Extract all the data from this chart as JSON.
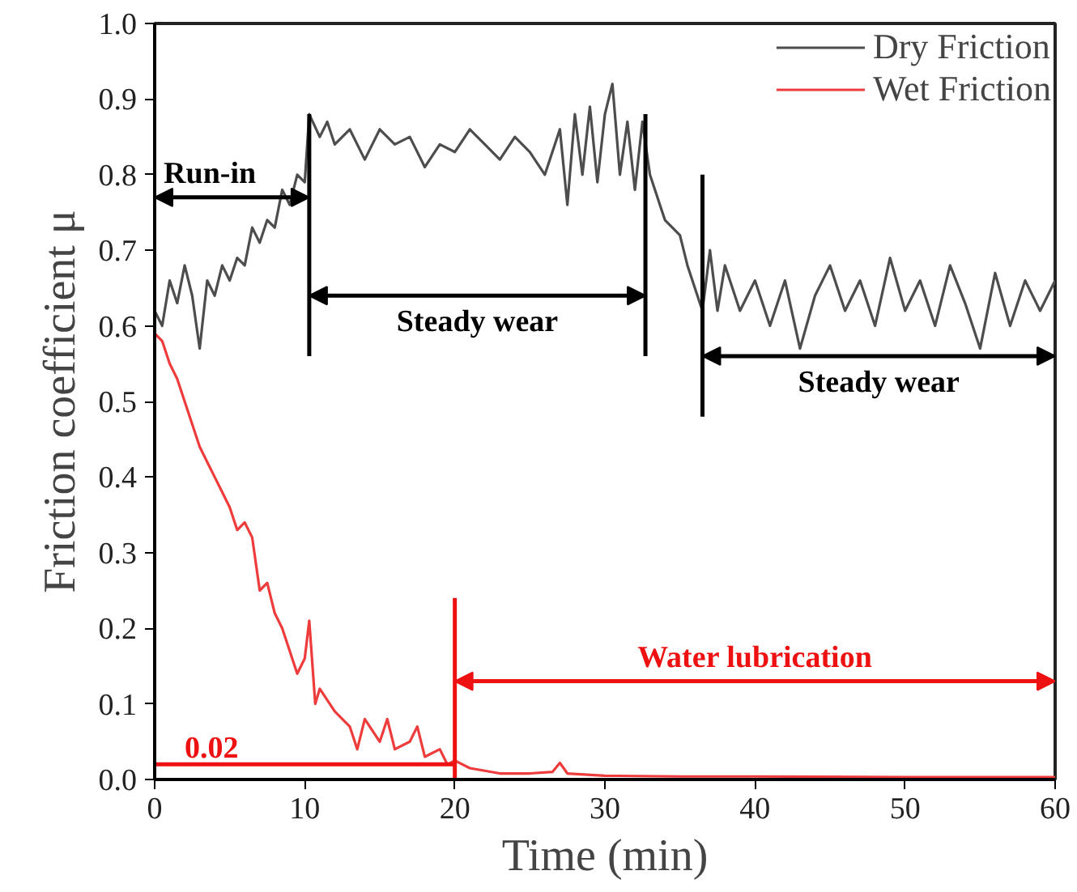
{
  "chart_data": {
    "type": "line",
    "xlabel": "Time (min)",
    "ylabel": "Friction coefficient μ",
    "xlim": [
      0,
      60
    ],
    "ylim": [
      0,
      1.0
    ],
    "xticks": [
      0,
      10,
      20,
      30,
      40,
      50,
      60
    ],
    "yticks": [
      {
        "value": 0,
        "label": "0.0"
      },
      {
        "value": 0.1,
        "label": "0.1"
      },
      {
        "value": 0.2,
        "label": "0.2"
      },
      {
        "value": 0.3,
        "label": "0.3"
      },
      {
        "value": 0.4,
        "label": "0.4"
      },
      {
        "value": 0.5,
        "label": "0.5"
      },
      {
        "value": 0.6,
        "label": "0.6"
      },
      {
        "value": 0.7,
        "label": "0.7"
      },
      {
        "value": 0.8,
        "label": "0.8"
      },
      {
        "value": 0.9,
        "label": "0.9"
      },
      {
        "value": 1.0,
        "label": "1.0"
      }
    ],
    "grid": false,
    "legend": "top right",
    "line_style": "solid",
    "marker": "none",
    "series": [
      {
        "name": "Dry Friction",
        "color": "#4d4d4d",
        "x": [
          0,
          0.5,
          1,
          1.5,
          2,
          2.5,
          3,
          3.5,
          4,
          4.5,
          5,
          5.5,
          6,
          6.5,
          7,
          7.5,
          8,
          8.5,
          9,
          9.5,
          10,
          10.3,
          11,
          11.5,
          12,
          13,
          14,
          15,
          16,
          17,
          18,
          19,
          20,
          21,
          22,
          23,
          24,
          25,
          26,
          27,
          27.5,
          28,
          28.5,
          29,
          29.5,
          30,
          30.5,
          31,
          31.5,
          32,
          32.5,
          33,
          33.5,
          34,
          35,
          35.5,
          36,
          36.5,
          37,
          37.5,
          38,
          39,
          40,
          41,
          42,
          43,
          44,
          45,
          46,
          47,
          48,
          49,
          50,
          51,
          52,
          53,
          54,
          55,
          56,
          57,
          58,
          59,
          60
        ],
        "values": [
          0.62,
          0.6,
          0.66,
          0.63,
          0.68,
          0.64,
          0.57,
          0.66,
          0.64,
          0.68,
          0.66,
          0.69,
          0.68,
          0.73,
          0.71,
          0.74,
          0.73,
          0.78,
          0.76,
          0.8,
          0.79,
          0.88,
          0.85,
          0.87,
          0.84,
          0.86,
          0.82,
          0.86,
          0.84,
          0.85,
          0.81,
          0.84,
          0.83,
          0.86,
          0.84,
          0.82,
          0.85,
          0.83,
          0.8,
          0.86,
          0.76,
          0.88,
          0.8,
          0.89,
          0.79,
          0.88,
          0.92,
          0.8,
          0.87,
          0.78,
          0.87,
          0.8,
          0.77,
          0.74,
          0.72,
          0.68,
          0.65,
          0.62,
          0.7,
          0.62,
          0.68,
          0.62,
          0.66,
          0.6,
          0.66,
          0.57,
          0.64,
          0.68,
          0.62,
          0.66,
          0.6,
          0.69,
          0.62,
          0.66,
          0.6,
          0.68,
          0.63,
          0.57,
          0.67,
          0.6,
          0.66,
          0.62,
          0.66
        ]
      },
      {
        "name": "Wet Friction",
        "color": "#ee3b3b",
        "x": [
          0,
          0.5,
          1,
          1.5,
          2,
          2.5,
          3,
          3.5,
          4,
          4.5,
          5,
          5.5,
          6,
          6.5,
          7,
          7.5,
          8,
          8.5,
          9,
          9.5,
          10,
          10.3,
          10.7,
          11,
          12,
          13,
          13.5,
          14,
          15,
          15.5,
          16,
          17,
          17.5,
          18,
          19,
          19.5,
          20,
          21,
          23,
          25,
          26.5,
          27,
          27.5,
          30,
          35,
          40,
          50,
          60
        ],
        "values": [
          0.59,
          0.58,
          0.55,
          0.53,
          0.5,
          0.47,
          0.44,
          0.42,
          0.4,
          0.38,
          0.36,
          0.33,
          0.34,
          0.32,
          0.25,
          0.26,
          0.22,
          0.2,
          0.17,
          0.14,
          0.16,
          0.21,
          0.1,
          0.12,
          0.09,
          0.07,
          0.04,
          0.08,
          0.05,
          0.08,
          0.04,
          0.05,
          0.07,
          0.03,
          0.04,
          0.02,
          0.025,
          0.015,
          0.008,
          0.008,
          0.01,
          0.022,
          0.008,
          0.005,
          0.004,
          0.004,
          0.003,
          0.003
        ]
      }
    ],
    "ref_lines": [
      {
        "axis": "y",
        "value": 0.02,
        "label": "0.02",
        "color": "#ee1111"
      },
      {
        "axis": "x",
        "value": 10.3,
        "color": "#000000"
      },
      {
        "axis": "x",
        "value": 32.7,
        "color": "#000000"
      },
      {
        "axis": "x",
        "value": 36.5,
        "color": "#000000"
      },
      {
        "axis": "x",
        "value": 20,
        "color": "#ee1111"
      }
    ],
    "annotations": [
      {
        "text": "Run-in",
        "x": 10.3,
        "y": 0.77
      },
      "Steady wear",
      "Steady wear",
      "Water lubrication"
    ]
  }
}
